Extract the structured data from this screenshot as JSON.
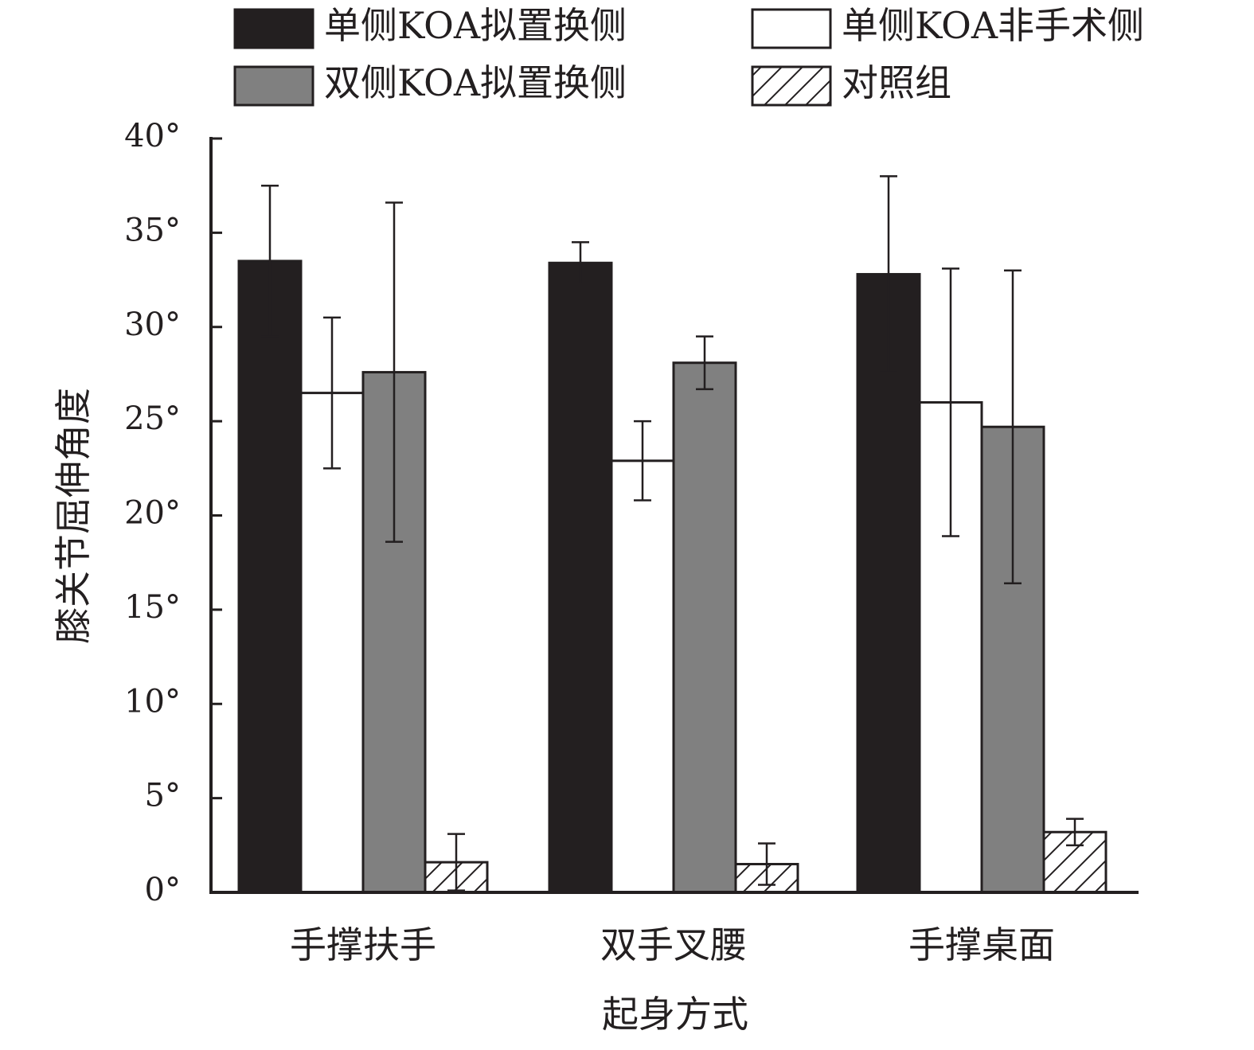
{
  "chart_data": {
    "type": "bar",
    "title": "",
    "xlabel": "起身方式",
    "ylabel": "膝关节屈伸角度",
    "ylim": [
      0,
      40
    ],
    "yticks": [
      0,
      5,
      10,
      15,
      20,
      25,
      30,
      35,
      40
    ],
    "ytick_labels": [
      "0°",
      "5°",
      "10°",
      "15°",
      "20°",
      "25°",
      "30°",
      "35°",
      "40°"
    ],
    "categories": [
      "手撑扶手",
      "双手叉腰",
      "手撑桌面"
    ],
    "legend_position": "top",
    "grid": false,
    "series": [
      {
        "name": "单侧KOA拟置换侧",
        "fill": "#231f20",
        "pattern": "solid",
        "values": [
          33.5,
          33.4,
          32.8
        ],
        "errors": [
          4.0,
          1.1,
          5.2
        ]
      },
      {
        "name": "单侧KOA非手术侧",
        "fill": "#ffffff",
        "pattern": "solid",
        "values": [
          26.5,
          22.9,
          26.0
        ],
        "errors": [
          4.0,
          2.1,
          7.1
        ]
      },
      {
        "name": "双侧KOA拟置换侧",
        "fill": "#808080",
        "pattern": "solid",
        "values": [
          27.6,
          28.1,
          24.7
        ],
        "errors": [
          9.0,
          1.4,
          8.3
        ]
      },
      {
        "name": "对照组",
        "fill": "#ffffff",
        "pattern": "hatch",
        "values": [
          1.6,
          1.5,
          3.2
        ],
        "errors": [
          1.5,
          1.1,
          0.7
        ]
      }
    ]
  }
}
